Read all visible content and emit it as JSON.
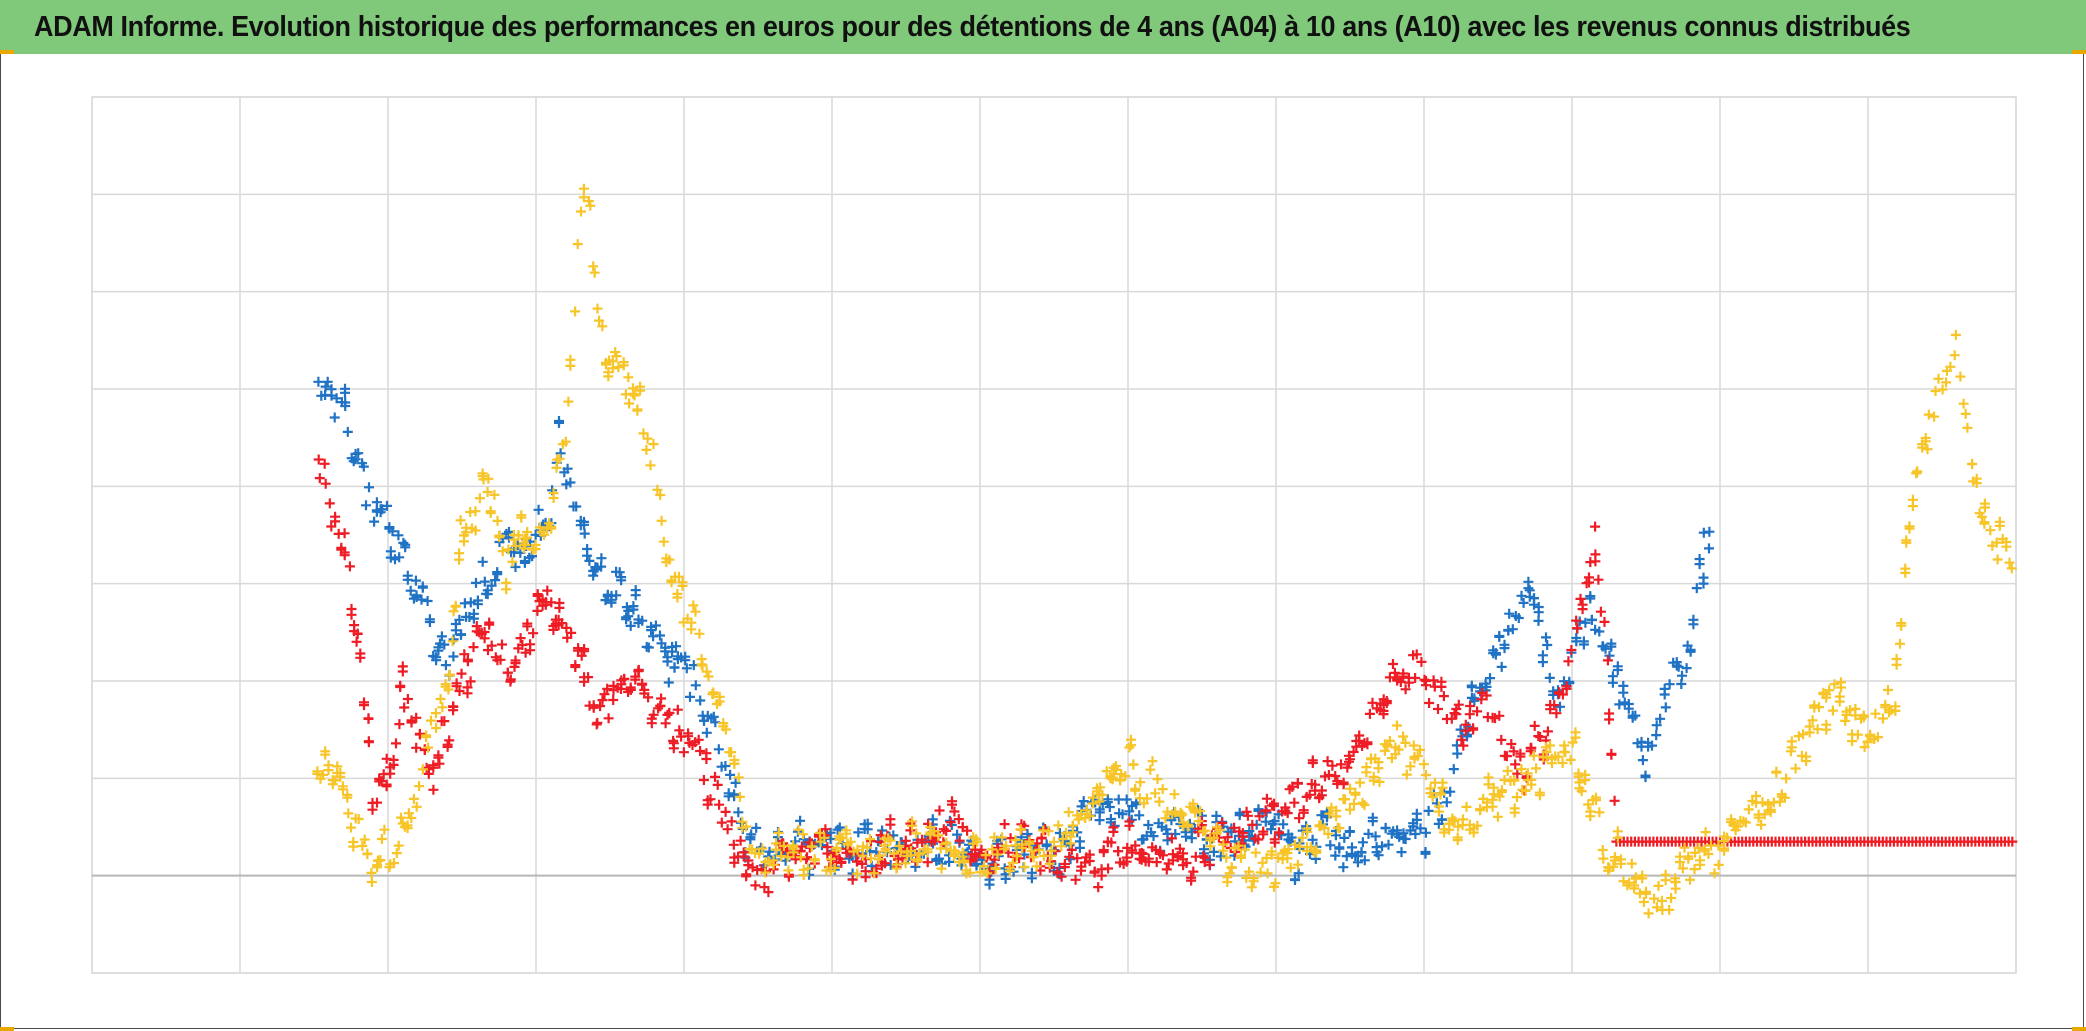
{
  "title": "ADAM Informe. Evolution historique des performances en euros pour des détentions de 4 ans (A04) à 10 ans (A10) avec les revenus connus distribués",
  "colors": {
    "title_bg": "#80c97b",
    "grid": "#d9d9d9",
    "axis": "#b7b7b7",
    "series_blue": "#1f72c4",
    "series_red": "#ee1c25",
    "series_yellow": "#f8c528"
  },
  "chart_data": {
    "type": "scatter",
    "title": "ADAM Informe. Evolution historique des performances en euros pour des détentions de 4 ans (A04) à 10 ans (A10) avec les revenus connus distribués",
    "marker": "plus",
    "xlabel": "",
    "ylabel": "",
    "x_unit": "observation index (x axis unlabeled, 13 gridline intervals)",
    "xlim": [
      0,
      13
    ],
    "ylim": [
      -1.0,
      8.0
    ],
    "zero_line_y": 0.0,
    "grid": true,
    "legend": "none",
    "x_tick_labels": [],
    "y_tick_labels": [],
    "series": [
      {
        "name": "blue",
        "color": "#1f72c4",
        "points": [
          [
            1.53,
            4.9
          ],
          [
            1.6,
            5.0
          ],
          [
            1.7,
            4.8
          ],
          [
            1.8,
            4.2
          ],
          [
            1.9,
            3.8
          ],
          [
            2.0,
            3.5
          ],
          [
            2.1,
            3.3
          ],
          [
            2.2,
            2.9
          ],
          [
            2.3,
            2.4
          ],
          [
            2.4,
            2.2
          ],
          [
            2.5,
            2.5
          ],
          [
            2.6,
            2.9
          ],
          [
            2.7,
            3.1
          ],
          [
            2.8,
            3.4
          ],
          [
            2.9,
            3.2
          ],
          [
            3.0,
            3.5
          ],
          [
            3.1,
            3.8
          ],
          [
            3.15,
            4.5
          ],
          [
            3.2,
            4.2
          ],
          [
            3.3,
            3.6
          ],
          [
            3.4,
            3.2
          ],
          [
            3.5,
            3.0
          ],
          [
            3.6,
            2.8
          ],
          [
            3.7,
            2.6
          ],
          [
            3.8,
            2.4
          ],
          [
            3.9,
            2.2
          ],
          [
            4.0,
            2.1
          ],
          [
            4.1,
            1.9
          ],
          [
            4.2,
            1.5
          ],
          [
            4.3,
            1.0
          ],
          [
            4.4,
            0.45
          ],
          [
            4.5,
            0.2
          ],
          [
            4.6,
            0.25
          ],
          [
            4.8,
            0.3
          ],
          [
            5.0,
            0.25
          ],
          [
            5.2,
            0.3
          ],
          [
            5.4,
            0.3
          ],
          [
            5.6,
            0.25
          ],
          [
            5.8,
            0.35
          ],
          [
            6.0,
            0.15
          ],
          [
            6.2,
            0.2
          ],
          [
            6.4,
            0.25
          ],
          [
            6.6,
            0.3
          ],
          [
            6.8,
            0.75
          ],
          [
            7.0,
            0.65
          ],
          [
            7.2,
            0.4
          ],
          [
            7.4,
            0.55
          ],
          [
            7.6,
            0.3
          ],
          [
            7.8,
            0.45
          ],
          [
            8.0,
            0.5
          ],
          [
            8.15,
            0.15
          ],
          [
            8.3,
            0.45
          ],
          [
            8.5,
            0.3
          ],
          [
            8.7,
            0.4
          ],
          [
            8.9,
            0.3
          ],
          [
            9.0,
            0.5
          ],
          [
            9.1,
            0.7
          ],
          [
            9.2,
            1.1
          ],
          [
            9.3,
            1.6
          ],
          [
            9.35,
            1.9
          ],
          [
            9.45,
            2.1
          ],
          [
            9.6,
            2.6
          ],
          [
            9.7,
            2.9
          ],
          [
            9.8,
            2.5
          ],
          [
            9.9,
            1.8
          ],
          [
            10.0,
            2.3
          ],
          [
            10.1,
            2.7
          ],
          [
            10.2,
            2.4
          ],
          [
            10.3,
            2.1
          ],
          [
            10.4,
            1.5
          ],
          [
            10.5,
            1.2
          ],
          [
            10.6,
            1.8
          ],
          [
            10.7,
            2.1
          ],
          [
            10.8,
            2.4
          ],
          [
            10.9,
            3.5
          ],
          [
            10.95,
            3.3
          ]
        ]
      },
      {
        "name": "red",
        "color": "#ee1c25",
        "points": [
          [
            1.53,
            4.2
          ],
          [
            1.6,
            3.8
          ],
          [
            1.7,
            3.3
          ],
          [
            1.8,
            2.5
          ],
          [
            1.9,
            0.9
          ],
          [
            2.0,
            1.1
          ],
          [
            2.1,
            1.9
          ],
          [
            2.2,
            1.4
          ],
          [
            2.3,
            1.0
          ],
          [
            2.4,
            1.5
          ],
          [
            2.5,
            2.0
          ],
          [
            2.6,
            2.3
          ],
          [
            2.7,
            2.5
          ],
          [
            2.8,
            2.2
          ],
          [
            2.9,
            2.4
          ],
          [
            3.0,
            2.6
          ],
          [
            3.1,
            2.8
          ],
          [
            3.2,
            2.6
          ],
          [
            3.3,
            2.2
          ],
          [
            3.4,
            1.6
          ],
          [
            3.5,
            1.8
          ],
          [
            3.6,
            1.9
          ],
          [
            3.7,
            2.1
          ],
          [
            3.8,
            1.8
          ],
          [
            3.9,
            1.6
          ],
          [
            4.0,
            1.4
          ],
          [
            4.1,
            1.2
          ],
          [
            4.2,
            0.9
          ],
          [
            4.3,
            0.5
          ],
          [
            4.4,
            0.1
          ],
          [
            4.5,
            -0.1
          ],
          [
            4.6,
            0.0
          ],
          [
            4.8,
            0.3
          ],
          [
            5.0,
            0.2
          ],
          [
            5.2,
            0.15
          ],
          [
            5.4,
            0.3
          ],
          [
            5.6,
            0.25
          ],
          [
            5.8,
            0.6
          ],
          [
            6.0,
            0.3
          ],
          [
            6.2,
            0.3
          ],
          [
            6.4,
            0.25
          ],
          [
            6.6,
            0.15
          ],
          [
            6.8,
            0.1
          ],
          [
            7.0,
            0.3
          ],
          [
            7.2,
            0.25
          ],
          [
            7.4,
            0.2
          ],
          [
            7.6,
            0.35
          ],
          [
            7.8,
            0.5
          ],
          [
            8.0,
            0.6
          ],
          [
            8.2,
            0.9
          ],
          [
            8.4,
            1.1
          ],
          [
            8.6,
            1.5
          ],
          [
            8.7,
            1.8
          ],
          [
            8.8,
            2.1
          ],
          [
            8.9,
            2.2
          ],
          [
            9.0,
            2.0
          ],
          [
            9.1,
            1.9
          ],
          [
            9.2,
            1.6
          ],
          [
            9.3,
            1.5
          ],
          [
            9.4,
            1.8
          ],
          [
            9.5,
            1.7
          ],
          [
            9.6,
            1.2
          ],
          [
            9.7,
            1.1
          ],
          [
            9.8,
            1.5
          ],
          [
            9.9,
            1.8
          ],
          [
            10.0,
            2.4
          ],
          [
            10.1,
            3.0
          ],
          [
            10.15,
            3.5
          ],
          [
            10.2,
            2.9
          ],
          [
            10.3,
            0.35
          ],
          [
            11.0,
            0.35
          ],
          [
            12.0,
            0.35
          ],
          [
            13.0,
            0.35
          ]
        ]
      },
      {
        "name": "yellow",
        "color": "#f8c528",
        "points": [
          [
            1.53,
            1.0
          ],
          [
            1.6,
            1.1
          ],
          [
            1.7,
            0.9
          ],
          [
            1.8,
            0.4
          ],
          [
            1.9,
            -0.1
          ],
          [
            2.0,
            0.3
          ],
          [
            2.1,
            0.5
          ],
          [
            2.2,
            0.8
          ],
          [
            2.3,
            1.5
          ],
          [
            2.4,
            2.0
          ],
          [
            2.5,
            3.4
          ],
          [
            2.6,
            3.8
          ],
          [
            2.7,
            4.0
          ],
          [
            2.8,
            3.2
          ],
          [
            2.9,
            3.5
          ],
          [
            3.0,
            3.4
          ],
          [
            3.1,
            3.8
          ],
          [
            3.2,
            4.6
          ],
          [
            3.3,
            6.8
          ],
          [
            3.35,
            7.2
          ],
          [
            3.4,
            6.0
          ],
          [
            3.5,
            5.2
          ],
          [
            3.6,
            5.1
          ],
          [
            3.7,
            4.8
          ],
          [
            3.8,
            4.2
          ],
          [
            3.9,
            3.2
          ],
          [
            4.0,
            2.7
          ],
          [
            4.1,
            2.5
          ],
          [
            4.2,
            1.8
          ],
          [
            4.3,
            1.4
          ],
          [
            4.4,
            0.6
          ],
          [
            4.5,
            0.1
          ],
          [
            4.6,
            0.2
          ],
          [
            4.8,
            0.3
          ],
          [
            5.0,
            0.2
          ],
          [
            5.2,
            0.3
          ],
          [
            5.4,
            0.2
          ],
          [
            5.6,
            0.3
          ],
          [
            5.8,
            0.25
          ],
          [
            6.0,
            0.15
          ],
          [
            6.2,
            0.2
          ],
          [
            6.4,
            0.3
          ],
          [
            6.6,
            0.5
          ],
          [
            6.8,
            0.85
          ],
          [
            7.0,
            1.1
          ],
          [
            7.2,
            0.9
          ],
          [
            7.4,
            0.6
          ],
          [
            7.6,
            0.3
          ],
          [
            7.8,
            0.0
          ],
          [
            8.0,
            0.15
          ],
          [
            8.2,
            0.3
          ],
          [
            8.4,
            0.55
          ],
          [
            8.6,
            0.9
          ],
          [
            8.8,
            1.4
          ],
          [
            9.0,
            1.0
          ],
          [
            9.2,
            0.5
          ],
          [
            9.4,
            0.75
          ],
          [
            9.6,
            0.9
          ],
          [
            9.8,
            1.1
          ],
          [
            10.0,
            1.4
          ],
          [
            10.2,
            0.4
          ],
          [
            10.4,
            0.0
          ],
          [
            10.6,
            -0.3
          ],
          [
            10.8,
            0.1
          ],
          [
            11.0,
            0.25
          ],
          [
            11.2,
            0.55
          ],
          [
            11.4,
            0.85
          ],
          [
            11.6,
            1.5
          ],
          [
            11.8,
            1.9
          ],
          [
            12.0,
            1.3
          ],
          [
            12.2,
            2.0
          ],
          [
            12.3,
            3.9
          ],
          [
            12.4,
            4.5
          ],
          [
            12.5,
            5.1
          ],
          [
            12.6,
            5.4
          ],
          [
            12.7,
            4.2
          ],
          [
            12.8,
            3.6
          ],
          [
            12.9,
            3.4
          ],
          [
            13.0,
            3.3
          ]
        ]
      }
    ]
  }
}
